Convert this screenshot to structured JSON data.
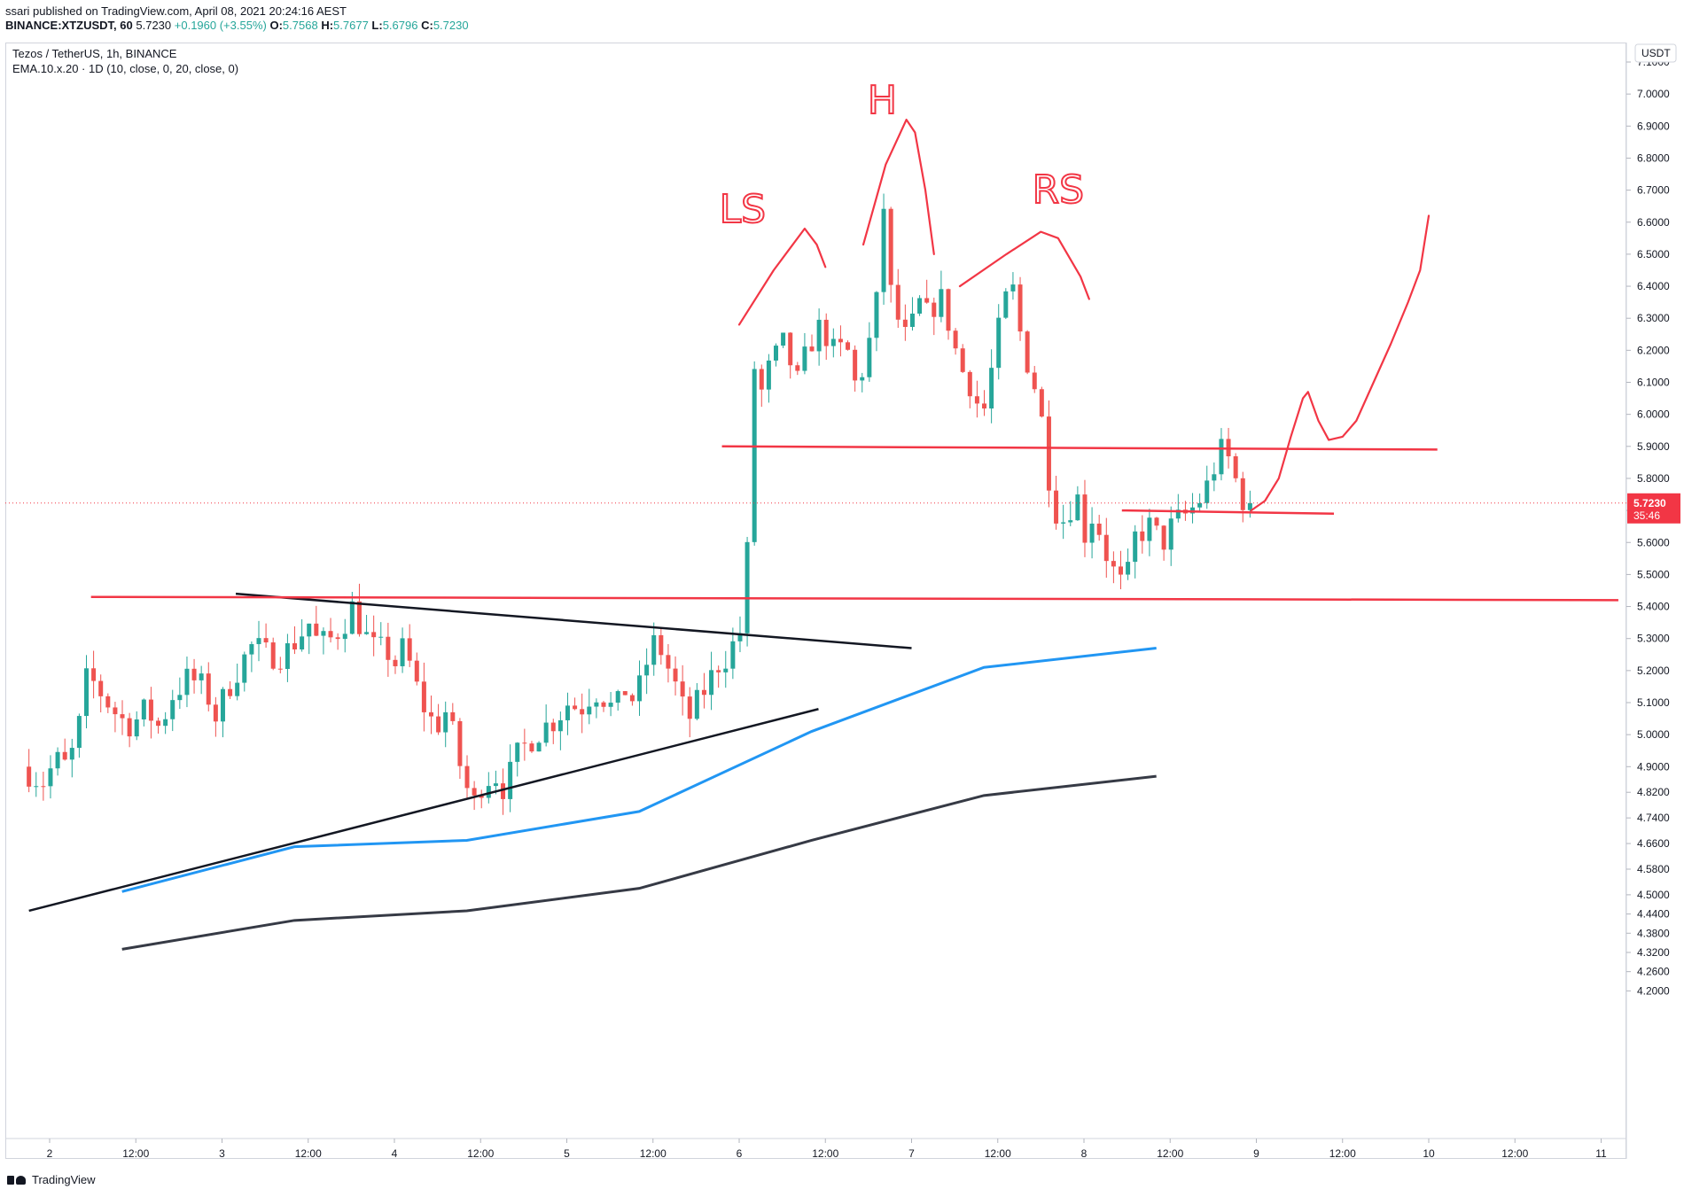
{
  "header": {
    "publish_line": "ssari published on TradingView.com, April 08, 2021 20:24:16 AEST",
    "symbol": "BINANCE:XTZUSDT, 60",
    "price": "5.7230",
    "change": "+0.1960 (+3.55%)",
    "o_label": "O:",
    "o_value": "5.7568",
    "h_label": "H:",
    "h_value": "5.7677",
    "l_label": "L:",
    "l_value": "5.6796",
    "c_label": "C:",
    "c_value": "5.7230"
  },
  "legend": {
    "title": "Tezos / TetherUS, 1h, BINANCE",
    "indicator": "EMA.10.x.20 · 1D (10, close, 0, 20, close, 0)"
  },
  "footer": {
    "brand": "TradingView"
  },
  "colors": {
    "up": "#26a69a",
    "down": "#ef5350",
    "ema_fast": "#2196f3",
    "ema_slow": "#363a45",
    "drawing_red": "#f23645",
    "trendline": "#131722",
    "current_price": "#f23645"
  },
  "chart_data": {
    "type": "candlestick",
    "currency_label": "USDT",
    "current_price": {
      "value": 5.723,
      "label": "5.7230",
      "countdown": "35:46"
    },
    "y_axis": {
      "range": [
        4.15,
        7.15
      ],
      "ticks": [
        "7.1000",
        "7.0000",
        "6.9000",
        "6.8000",
        "6.7000",
        "6.6000",
        "6.5000",
        "6.4000",
        "6.3000",
        "6.2000",
        "6.1000",
        "6.0000",
        "5.9000",
        "5.8000",
        "5.7000",
        "5.6000",
        "5.5000",
        "5.4000",
        "5.3000",
        "5.2000",
        "5.1000",
        "5.0000",
        "4.9000",
        "4.8200",
        "4.7400",
        "4.6600",
        "4.5800",
        "4.5000",
        "4.4400",
        "4.3800",
        "4.3200",
        "4.2600",
        "4.2000"
      ]
    },
    "x_axis": {
      "ticks": [
        {
          "label": "2",
          "day": 2.0
        },
        {
          "label": "12:00",
          "day": 2.5
        },
        {
          "label": "3",
          "day": 3.0
        },
        {
          "label": "12:00",
          "day": 3.5
        },
        {
          "label": "4",
          "day": 4.0
        },
        {
          "label": "12:00",
          "day": 4.5
        },
        {
          "label": "5",
          "day": 5.0
        },
        {
          "label": "12:00",
          "day": 5.5
        },
        {
          "label": "6",
          "day": 6.0
        },
        {
          "label": "12:00",
          "day": 6.5
        },
        {
          "label": "7",
          "day": 7.0
        },
        {
          "label": "12:00",
          "day": 7.5
        },
        {
          "label": "8",
          "day": 8.0
        },
        {
          "label": "12:00",
          "day": 8.5
        },
        {
          "label": "9",
          "day": 9.0
        },
        {
          "label": "12:00",
          "day": 9.5
        },
        {
          "label": "10",
          "day": 10.0
        },
        {
          "label": "12:00",
          "day": 10.5
        },
        {
          "label": "11",
          "day": 11.0
        }
      ]
    },
    "price_path": [
      [
        1.88,
        4.9
      ],
      [
        2.0,
        4.85
      ],
      [
        2.08,
        4.92
      ],
      [
        2.14,
        4.9
      ],
      [
        2.2,
        4.98
      ],
      [
        2.25,
        5.17
      ],
      [
        2.3,
        5.16
      ],
      [
        2.38,
        5.1
      ],
      [
        2.45,
        5.05
      ],
      [
        2.52,
        5.03
      ],
      [
        2.6,
        5.08
      ],
      [
        2.68,
        5.02
      ],
      [
        2.75,
        5.12
      ],
      [
        2.85,
        5.18
      ],
      [
        2.95,
        5.14
      ],
      [
        3.0,
        5.05
      ],
      [
        3.08,
        5.15
      ],
      [
        3.15,
        5.22
      ],
      [
        3.22,
        5.28
      ],
      [
        3.3,
        5.25
      ],
      [
        3.4,
        5.25
      ],
      [
        3.48,
        5.3
      ],
      [
        3.55,
        5.35
      ],
      [
        3.6,
        5.28
      ],
      [
        3.68,
        5.3
      ],
      [
        3.75,
        5.35
      ],
      [
        3.8,
        5.4
      ],
      [
        3.86,
        5.32
      ],
      [
        3.92,
        5.27
      ],
      [
        4.0,
        5.26
      ],
      [
        4.05,
        5.22
      ],
      [
        4.1,
        5.28
      ],
      [
        4.15,
        5.18
      ],
      [
        4.2,
        5.1
      ],
      [
        4.28,
        5.02
      ],
      [
        4.35,
        5.08
      ],
      [
        4.4,
        4.95
      ],
      [
        4.45,
        4.85
      ],
      [
        4.5,
        4.78
      ],
      [
        4.55,
        4.85
      ],
      [
        4.62,
        4.88
      ],
      [
        4.68,
        4.83
      ],
      [
        4.75,
        4.93
      ],
      [
        4.82,
        4.98
      ],
      [
        4.9,
        5.02
      ],
      [
        4.98,
        5.05
      ],
      [
        5.05,
        5.1
      ],
      [
        5.12,
        5.08
      ],
      [
        5.2,
        5.14
      ],
      [
        5.25,
        5.12
      ],
      [
        5.32,
        5.07
      ],
      [
        5.38,
        5.14
      ],
      [
        5.44,
        5.1
      ],
      [
        5.48,
        5.18
      ],
      [
        5.52,
        5.25
      ],
      [
        5.56,
        5.3
      ],
      [
        5.62,
        5.22
      ],
      [
        5.68,
        5.14
      ],
      [
        5.74,
        5.04
      ],
      [
        5.8,
        5.1
      ],
      [
        5.86,
        5.16
      ],
      [
        5.92,
        5.22
      ],
      [
        5.98,
        5.25
      ],
      [
        6.04,
        5.32
      ],
      [
        6.08,
        5.33
      ],
      [
        6.1,
        5.9
      ],
      [
        6.12,
        6.18
      ],
      [
        6.16,
        6.05
      ],
      [
        6.22,
        6.15
      ],
      [
        6.3,
        6.22
      ],
      [
        6.38,
        6.1
      ],
      [
        6.45,
        6.22
      ],
      [
        6.52,
        6.28
      ],
      [
        6.6,
        6.18
      ],
      [
        6.66,
        6.22
      ],
      [
        6.72,
        6.08
      ],
      [
        6.78,
        6.18
      ],
      [
        6.84,
        6.35
      ],
      [
        6.88,
        6.65
      ],
      [
        6.92,
        6.38
      ],
      [
        6.96,
        6.3
      ],
      [
        7.02,
        6.22
      ],
      [
        7.08,
        6.35
      ],
      [
        7.14,
        6.3
      ],
      [
        7.2,
        6.38
      ],
      [
        7.26,
        6.28
      ],
      [
        7.32,
        6.15
      ],
      [
        7.4,
        6.08
      ],
      [
        7.45,
        5.98
      ],
      [
        7.5,
        6.12
      ],
      [
        7.56,
        6.3
      ],
      [
        7.62,
        6.42
      ],
      [
        7.66,
        6.28
      ],
      [
        7.72,
        6.15
      ],
      [
        7.78,
        6.05
      ],
      [
        7.84,
        5.8
      ],
      [
        7.9,
        5.65
      ],
      [
        7.95,
        5.7
      ],
      [
        8.0,
        5.75
      ],
      [
        8.05,
        5.62
      ],
      [
        8.1,
        5.7
      ],
      [
        8.16,
        5.58
      ],
      [
        8.22,
        5.5
      ],
      [
        8.28,
        5.45
      ],
      [
        8.34,
        5.62
      ],
      [
        8.42,
        5.65
      ],
      [
        8.5,
        5.6
      ],
      [
        8.56,
        5.66
      ],
      [
        8.62,
        5.68
      ],
      [
        8.7,
        5.72
      ],
      [
        8.76,
        5.78
      ],
      [
        8.82,
        5.87
      ],
      [
        8.86,
        5.9
      ],
      [
        8.9,
        5.82
      ],
      [
        8.95,
        5.76
      ],
      [
        8.97,
        5.723
      ]
    ],
    "ema_series": [
      {
        "color_key": "ema_fast",
        "points": [
          [
            2.42,
            4.51
          ],
          [
            3.42,
            4.65
          ],
          [
            4.42,
            4.67
          ],
          [
            5.42,
            4.76
          ],
          [
            6.42,
            5.01
          ],
          [
            7.42,
            5.21
          ],
          [
            8.42,
            5.27
          ]
        ]
      },
      {
        "color_key": "ema_slow",
        "points": [
          [
            2.42,
            4.33
          ],
          [
            3.42,
            4.42
          ],
          [
            4.42,
            4.45
          ],
          [
            5.42,
            4.52
          ],
          [
            6.42,
            4.67
          ],
          [
            7.42,
            4.81
          ],
          [
            8.42,
            4.87
          ]
        ]
      }
    ],
    "trendlines": [
      {
        "color_key": "trendline",
        "points": [
          [
            1.88,
            4.45
          ],
          [
            6.46,
            5.08
          ]
        ]
      },
      {
        "color_key": "trendline",
        "points": [
          [
            3.08,
            5.44
          ],
          [
            7.0,
            5.27
          ]
        ]
      }
    ],
    "horizontal_levels": [
      {
        "color_key": "drawing_red",
        "points": [
          [
            2.24,
            5.43
          ],
          [
            11.1,
            5.42
          ]
        ]
      },
      {
        "color_key": "drawing_red",
        "points": [
          [
            5.9,
            5.9
          ],
          [
            10.05,
            5.89
          ]
        ]
      },
      {
        "color_key": "drawing_red",
        "points": [
          [
            8.22,
            5.7
          ],
          [
            9.45,
            5.69
          ]
        ]
      }
    ],
    "pattern_labels": [
      {
        "text": "LS",
        "day": 6.02,
        "price": 6.6
      },
      {
        "text": "H",
        "day": 6.83,
        "price": 6.94
      },
      {
        "text": "RS",
        "day": 7.85,
        "price": 6.66
      }
    ]
  }
}
